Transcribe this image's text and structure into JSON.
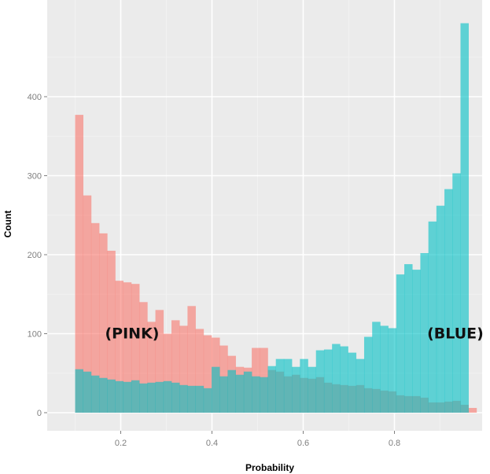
{
  "chart_data": {
    "type": "bar",
    "subtype": "overlaid-histogram",
    "title": "",
    "xlabel": "Probability",
    "ylabel": "Count",
    "xlim": [
      0.1,
      0.98
    ],
    "ylim": [
      0,
      500
    ],
    "x_ticks": [
      0.2,
      0.4,
      0.6,
      0.8
    ],
    "x_tick_labels": [
      "0.2",
      "0.4",
      "0.6",
      "0.8"
    ],
    "y_ticks": [
      0,
      100,
      200,
      300,
      400
    ],
    "y_tick_labels": [
      "0",
      "100",
      "200",
      "300",
      "400"
    ],
    "grid": true,
    "background": "#EBEBEB",
    "bin_edges": [
      0.1,
      0.1176,
      0.1352,
      0.1528,
      0.1704,
      0.188,
      0.2056,
      0.2232,
      0.2408,
      0.2584,
      0.276,
      0.2936,
      0.3112,
      0.3288,
      0.3464,
      0.364,
      0.3816,
      0.3992,
      0.4168,
      0.4344,
      0.452,
      0.4696,
      0.4872,
      0.5048,
      0.5224,
      0.54,
      0.5576,
      0.5752,
      0.5928,
      0.6104,
      0.628,
      0.6456,
      0.6632,
      0.6808,
      0.6984,
      0.716,
      0.7336,
      0.7512,
      0.7688,
      0.7864,
      0.804,
      0.8216,
      0.8392,
      0.8568,
      0.8744,
      0.892,
      0.9096,
      0.9272,
      0.9448,
      0.9624,
      0.98
    ],
    "series": [
      {
        "color": "#F8766D",
        "values": [
          377,
          275,
          240,
          227,
          205,
          167,
          165,
          163,
          140,
          115,
          130,
          100,
          117,
          110,
          135,
          106,
          98,
          95,
          85,
          72,
          58,
          57,
          82,
          82,
          54,
          52,
          46,
          48,
          44,
          43,
          45,
          38,
          36,
          35,
          34,
          35,
          31,
          30,
          28,
          27,
          22,
          21,
          21,
          19,
          13,
          13,
          14,
          15,
          10,
          6
        ]
      },
      {
        "color": "#00BFC4",
        "values": [
          55,
          52,
          47,
          44,
          42,
          40,
          39,
          41,
          37,
          38,
          39,
          40,
          38,
          35,
          34,
          34,
          31,
          58,
          46,
          54,
          48,
          52,
          46,
          45,
          59,
          68,
          68,
          58,
          68,
          58,
          79,
          80,
          87,
          84,
          76,
          68,
          96,
          115,
          110,
          107,
          175,
          188,
          181,
          202,
          242,
          262,
          283,
          303,
          493,
          0
        ]
      }
    ],
    "annotations": [
      {
        "label": "(PINK)",
        "x": 0.1,
        "y": 100
      },
      {
        "label": "(BLUE)",
        "x": 0.82,
        "y": 100
      }
    ]
  }
}
